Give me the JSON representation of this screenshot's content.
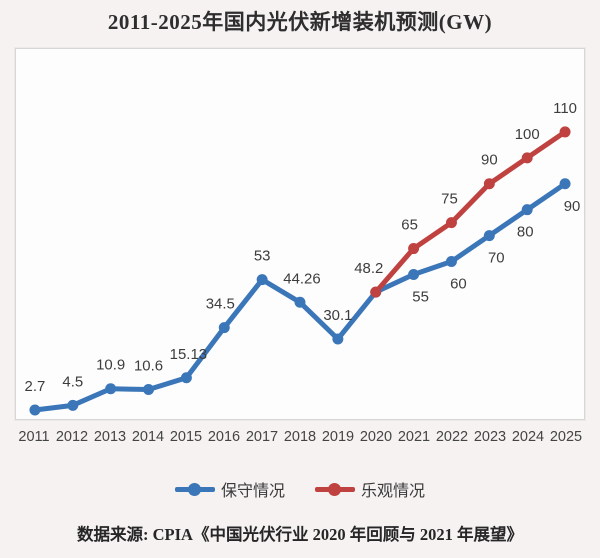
{
  "page": {
    "title": "2011-2025年国内光伏新增装机预测(GW)"
  },
  "footer": {
    "source": "数据来源: CPIA《中国光伏行业 2020 年回顾与 2021 年展望》"
  },
  "chart_data": {
    "type": "line",
    "title": "2011-2025年国内光伏新增装机预测(GW)",
    "xlabel": "",
    "ylabel": "",
    "categories": [
      "2011",
      "2012",
      "2013",
      "2014",
      "2015",
      "2016",
      "2017",
      "2018",
      "2019",
      "2020",
      "2021",
      "2022",
      "2023",
      "2024",
      "2025"
    ],
    "ylim": [
      0,
      142
    ],
    "y_axis_hidden": true,
    "grid": false,
    "legend_position": "bottom",
    "series": [
      {
        "key": "conservative",
        "name": "保守情况",
        "color": "#3B76B8",
        "values": [
          2.7,
          4.5,
          10.9,
          10.6,
          15.13,
          34.5,
          53,
          44.26,
          30.1,
          48.2,
          55,
          60,
          70,
          80,
          90
        ],
        "labels": [
          "2.7",
          "4.5",
          "10.9",
          "10.6",
          "15.13",
          "34.5",
          "53",
          "44.26",
          "30.1",
          "48.2",
          "55",
          "60",
          "70",
          "80",
          "90"
        ],
        "label_pos": [
          "above",
          "above",
          "above",
          "above",
          "above",
          "above",
          "above",
          "above",
          "above",
          "above",
          "below",
          "below",
          "below",
          "below",
          "below"
        ],
        "label_dx": [
          0,
          0,
          0,
          0,
          2,
          -4,
          0,
          2,
          0,
          -7,
          7,
          7,
          7,
          -2,
          7
        ]
      },
      {
        "key": "optimistic",
        "name": "乐观情况",
        "color": "#C04240",
        "values": [
          null,
          null,
          null,
          null,
          null,
          null,
          null,
          null,
          null,
          48.2,
          65,
          75,
          90,
          100,
          110
        ],
        "labels": [
          null,
          null,
          null,
          null,
          null,
          null,
          null,
          null,
          null,
          null,
          "65",
          "75",
          "90",
          "100",
          "110"
        ],
        "label_pos": [
          null,
          null,
          null,
          null,
          null,
          null,
          null,
          null,
          null,
          null,
          "above",
          "above",
          "above",
          "above",
          "above"
        ],
        "label_dx": [
          0,
          0,
          0,
          0,
          0,
          0,
          0,
          0,
          0,
          0,
          -4,
          -2,
          0,
          0,
          0
        ]
      }
    ]
  }
}
